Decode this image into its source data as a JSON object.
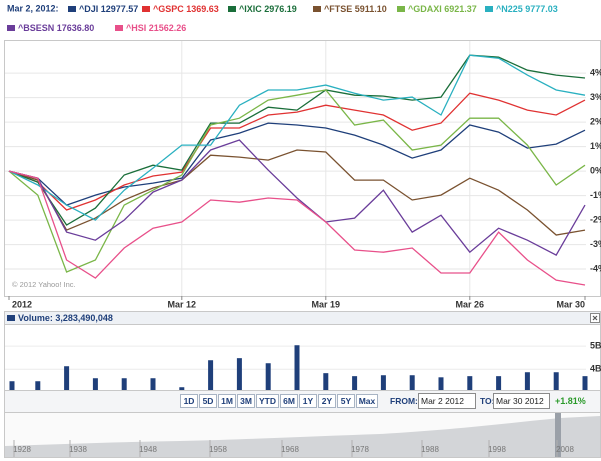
{
  "header": {
    "date": "Mar 2, 2012:"
  },
  "copyright": "© 2012 Yahoo! Inc.",
  "chart_data": [
    {
      "type": "line",
      "categories": [
        "2012",
        null,
        null,
        null,
        null,
        null,
        "Mar 12",
        null,
        null,
        null,
        null,
        "Mar 19",
        null,
        null,
        null,
        null,
        "Mar 26",
        null,
        null,
        null,
        "Mar 30"
      ],
      "ylim": [
        -5.1,
        5.27
      ],
      "yticks": [
        {
          "value": 4,
          "label": "4%"
        },
        {
          "value": 3,
          "label": "3%"
        },
        {
          "value": 2,
          "label": "2%"
        },
        {
          "value": 1,
          "label": "1%"
        },
        {
          "value": 0,
          "label": "0%"
        },
        {
          "value": -1,
          "label": "-1%"
        },
        {
          "value": -2,
          "label": "-2%"
        },
        {
          "value": -3,
          "label": "-3%"
        },
        {
          "value": -4,
          "label": "-4%"
        }
      ],
      "grid": true,
      "series": [
        {
          "name": "^DJI 12977.57",
          "color": "#1f3f7a",
          "values": [
            0,
            -0.29,
            -1.39,
            -0.98,
            -0.65,
            -0.49,
            -0.29,
            1.27,
            1.55,
            1.96,
            1.88,
            1.76,
            1.47,
            1.06,
            0.53,
            0.86,
            1.88,
            1.59,
            0.94,
            1.1,
            1.67
          ]
        },
        {
          "name": "^GSPC 1369.63",
          "color": "#e03232",
          "values": [
            0,
            -0.45,
            -1.59,
            -1.18,
            -0.57,
            -0.2,
            -0.04,
            1.76,
            1.76,
            2.29,
            2.41,
            2.69,
            2.49,
            2.29,
            1.67,
            1.96,
            3.18,
            2.9,
            2.49,
            2.29,
            2.9
          ]
        },
        {
          "name": "^IXIC 2976.19",
          "color": "#1a6e3a",
          "values": [
            0,
            -0.45,
            -2.2,
            -1.51,
            -0.16,
            0.24,
            0.04,
            1.96,
            1.96,
            2.61,
            2.49,
            3.31,
            3.1,
            3.06,
            2.9,
            3.02,
            4.73,
            4.65,
            4.12,
            3.92,
            3.8
          ]
        },
        {
          "name": "^FTSE 5911.10",
          "color": "#7a5230",
          "values": [
            0,
            -0.37,
            -2.41,
            -1.92,
            -1.18,
            -0.69,
            -0.37,
            0.65,
            0.57,
            0.45,
            0.86,
            0.78,
            -0.37,
            -0.37,
            -1.18,
            -0.98,
            -0.29,
            -0.78,
            -1.59,
            -2.61,
            -2.41
          ]
        },
        {
          "name": "^GDAXI 6921.37",
          "color": "#7ab648",
          "values": [
            0,
            -0.98,
            -4.12,
            -3.63,
            -1.39,
            -0.78,
            -0.16,
            1.88,
            2.16,
            2.9,
            3.1,
            3.31,
            1.88,
            2.08,
            0.86,
            1.06,
            2.16,
            2.16,
            1.06,
            -0.57,
            0.24
          ]
        },
        {
          "name": "^N225 9777.03",
          "color": "#2ab0c0",
          "values": [
            0,
            -0.57,
            -1.39,
            -2.0,
            -0.78,
            0.12,
            1.06,
            1.06,
            2.69,
            3.31,
            3.31,
            3.51,
            3.18,
            2.9,
            3.02,
            2.29,
            4.73,
            4.61,
            3.92,
            3.31,
            3.1
          ]
        },
        {
          "name": "^BSESN 17636.80",
          "color": "#6a3d9a",
          "values": [
            0,
            -0.29,
            -2.49,
            -2.82,
            -2.0,
            -0.86,
            -0.37,
            0.86,
            1.27,
            0.04,
            -1.1,
            -2.08,
            -1.92,
            -0.78,
            -2.49,
            -1.8,
            -3.31,
            -2.33,
            -2.82,
            -3.43,
            -1.39
          ]
        },
        {
          "name": "^HSI 21562.26",
          "color": "#e8508a",
          "values": [
            0,
            -0.29,
            -3.63,
            -4.37,
            -3.14,
            -2.33,
            -2.08,
            -1.18,
            -1.27,
            -1.1,
            -1.18,
            -2.08,
            -3.22,
            -3.31,
            -3.14,
            -4.16,
            -4.16,
            -2.49,
            -3.63,
            -4.45,
            -4.65
          ]
        }
      ]
    },
    {
      "type": "bar",
      "title": "Volume: 3,283,490,048",
      "color": "#1f3f7a",
      "values": [
        3.48,
        3.48,
        4.13,
        3.61,
        3.61,
        3.61,
        3.22,
        4.39,
        4.48,
        4.26,
        5.04,
        3.83,
        3.7,
        3.74,
        3.74,
        3.65,
        3.7,
        3.7,
        3.87,
        3.87,
        3.7
      ],
      "ylim": [
        3.1,
        5.7
      ],
      "yticks": [
        {
          "value": 5,
          "label": "5B"
        },
        {
          "value": 4,
          "label": "4B"
        }
      ],
      "grid": true
    }
  ],
  "range_buttons": [
    "1D",
    "5D",
    "1M",
    "3M",
    "YTD",
    "6M",
    "1Y",
    "2Y",
    "5Y",
    "Max"
  ],
  "from_label": "FROM:",
  "from_value": "Mar 2 2012",
  "to_label": "TO:",
  "to_value": "Mar 30 2012",
  "change": "+1.81%",
  "timeline": [
    "1928",
    "1938",
    "1948",
    "1958",
    "1968",
    "1978",
    "1988",
    "1998",
    "2008"
  ]
}
